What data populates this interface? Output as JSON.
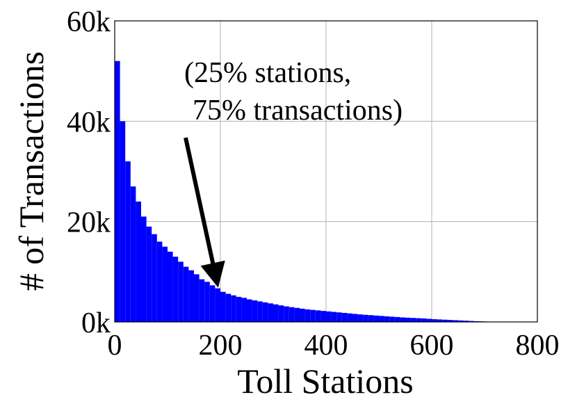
{
  "chart_data": {
    "type": "bar",
    "x_label": "Toll Stations",
    "y_label": "# of Transactions",
    "annotation": [
      "(25% stations,",
      "75% transactions)"
    ],
    "color": "#0000ff",
    "grid": true,
    "x": [
      0,
      10,
      20,
      30,
      40,
      50,
      60,
      70,
      80,
      90,
      100,
      110,
      120,
      130,
      140,
      150,
      160,
      170,
      180,
      190,
      200,
      210,
      220,
      230,
      240,
      250,
      260,
      270,
      280,
      290,
      300,
      310,
      320,
      330,
      340,
      350,
      360,
      370,
      380,
      390,
      400,
      410,
      420,
      430,
      440,
      450,
      460,
      470,
      480,
      490,
      500,
      510,
      520,
      530,
      540,
      550,
      560,
      570,
      580,
      590,
      600,
      610,
      620,
      630,
      640,
      650,
      660,
      670,
      680,
      690,
      700,
      710
    ],
    "values": [
      52000,
      40000,
      32000,
      27000,
      24000,
      21000,
      19000,
      17500,
      16000,
      15000,
      14000,
      13000,
      12000,
      11000,
      10300,
      9500,
      8500,
      8000,
      7300,
      6700,
      6000,
      5600,
      5300,
      5000,
      4800,
      4500,
      4300,
      4100,
      3900,
      3700,
      3500,
      3300,
      3100,
      2950,
      2800,
      2650,
      2500,
      2400,
      2300,
      2200,
      2100,
      2000,
      1900,
      1800,
      1700,
      1600,
      1500,
      1420,
      1350,
      1270,
      1200,
      1120,
      1050,
      980,
      900,
      850,
      800,
      750,
      700,
      620,
      550,
      500,
      450,
      400,
      350,
      300,
      250,
      200,
      150,
      120,
      80,
      30
    ],
    "xlim": [
      0,
      800
    ],
    "xticks": [
      0,
      200,
      400,
      600,
      800
    ],
    "ylim": [
      0,
      60000
    ],
    "yticks": [
      {
        "value": 0,
        "label": "0k"
      },
      {
        "value": 20000,
        "label": "20k"
      },
      {
        "value": 40000,
        "label": "40k"
      },
      {
        "value": 60000,
        "label": "60k"
      }
    ]
  }
}
